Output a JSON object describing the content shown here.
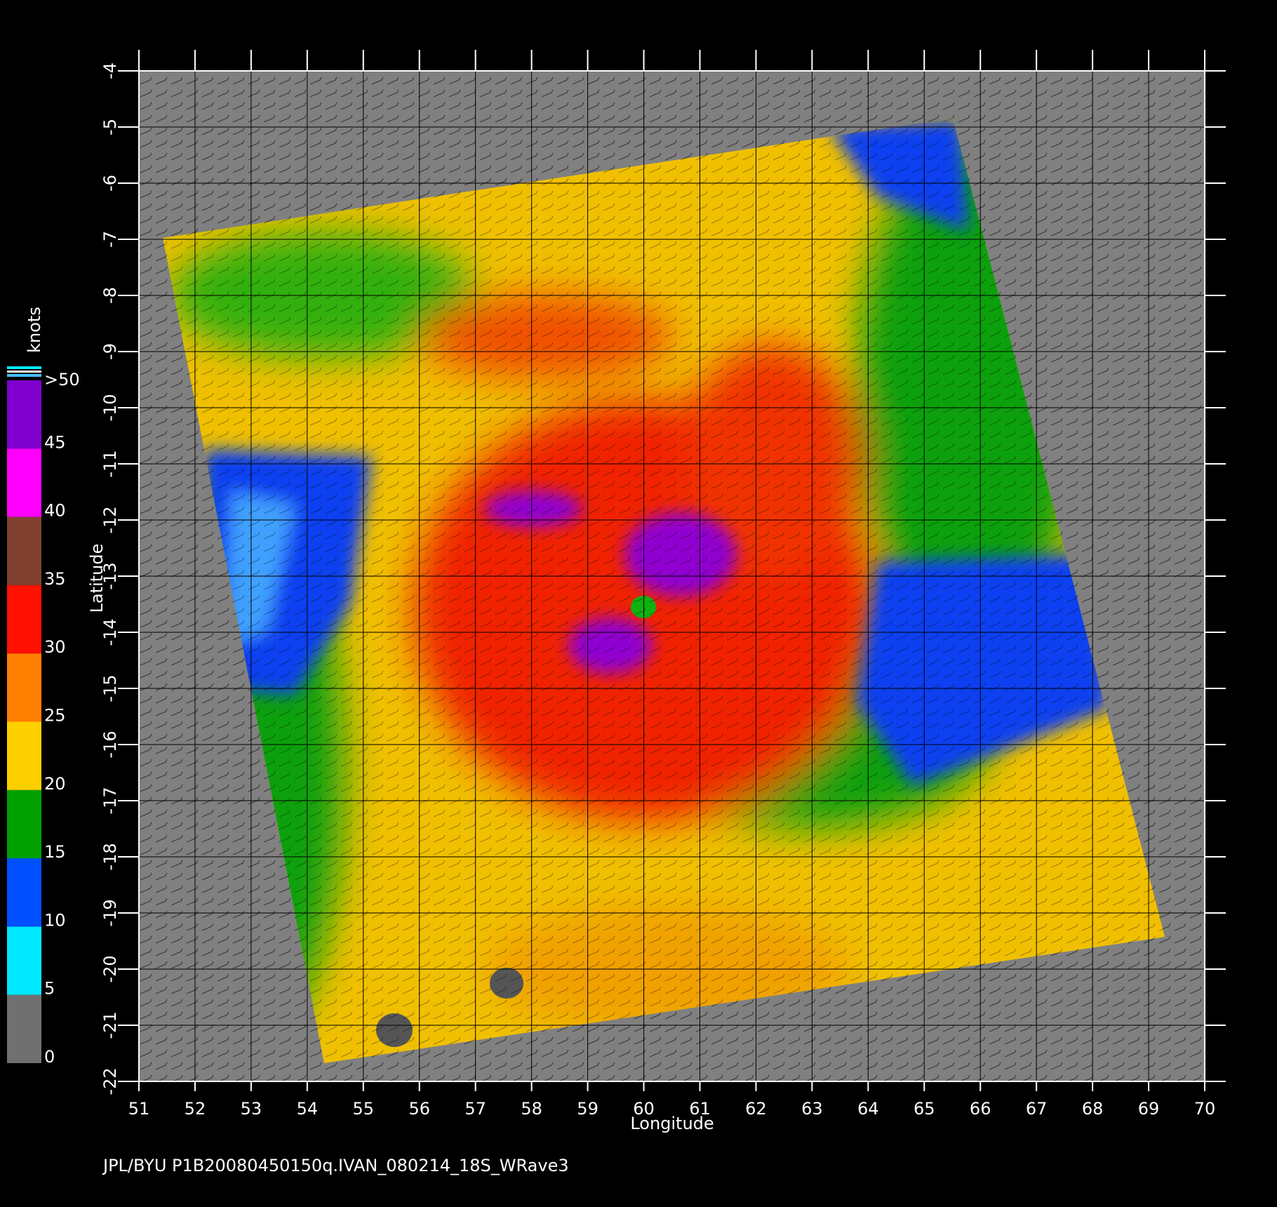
{
  "chart_data": {
    "type": "map",
    "x_label": "Longitude",
    "y_label": "Latitude",
    "xlim": [
      51,
      70
    ],
    "xticks": [
      51,
      52,
      53,
      54,
      55,
      56,
      57,
      58,
      59,
      60,
      61,
      62,
      63,
      64,
      65,
      66,
      67,
      68,
      69,
      70
    ],
    "ylim": [
      -22,
      -4
    ],
    "yticks": [
      -4,
      -5,
      -6,
      -7,
      -8,
      -9,
      -10,
      -11,
      -12,
      -13,
      -14,
      -15,
      -16,
      -17,
      -18,
      -19,
      -20,
      -21,
      -22
    ],
    "grid": true,
    "colorbar": {
      "label": "knots",
      "ticks": [
        0,
        5,
        10,
        15,
        20,
        25,
        30,
        35,
        40,
        45,
        {
          "value": 50,
          "label": ">50"
        }
      ],
      "colors": [
        "#707070",
        "#00e8ff",
        "#0050ff",
        "#00a000",
        "#ffd000",
        "#ff8000",
        "#ff1000",
        "#804030",
        "#ff00ff",
        "#8000d0"
      ]
    },
    "footer": "JPL/BYU  P1B20080450150q.IVAN_080214_18S_WRave3"
  }
}
